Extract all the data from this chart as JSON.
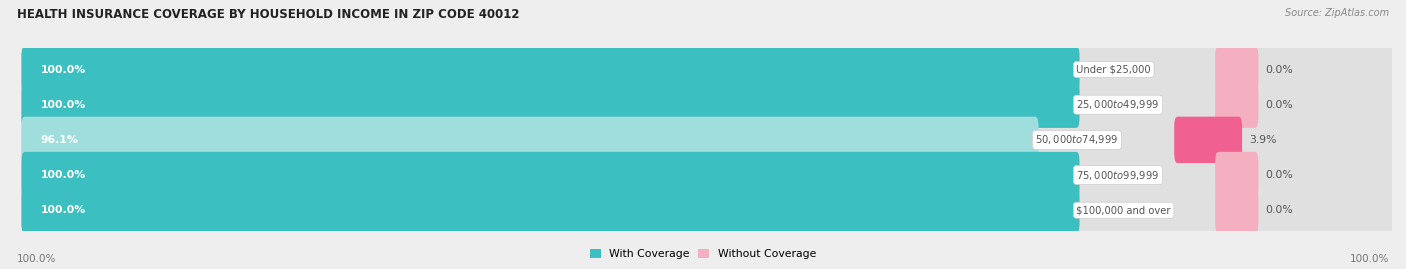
{
  "title": "HEALTH INSURANCE COVERAGE BY HOUSEHOLD INCOME IN ZIP CODE 40012",
  "source": "Source: ZipAtlas.com",
  "categories": [
    "Under $25,000",
    "$25,000 to $49,999",
    "$50,000 to $74,999",
    "$75,000 to $99,999",
    "$100,000 and over"
  ],
  "with_coverage": [
    100.0,
    100.0,
    96.1,
    100.0,
    100.0
  ],
  "without_coverage": [
    0.0,
    0.0,
    3.9,
    0.0,
    0.0
  ],
  "color_with": "#3bbfc0",
  "color_without_strong": "#f06090",
  "color_without_light": "#f4afc0",
  "color_with_light": "#a0dede",
  "bg_color": "#eeeeee",
  "bar_bg": "#e0e0e0",
  "text_color_dark": "#555555",
  "text_color_white": "#ffffff",
  "fig_width": 14.06,
  "fig_height": 2.69
}
